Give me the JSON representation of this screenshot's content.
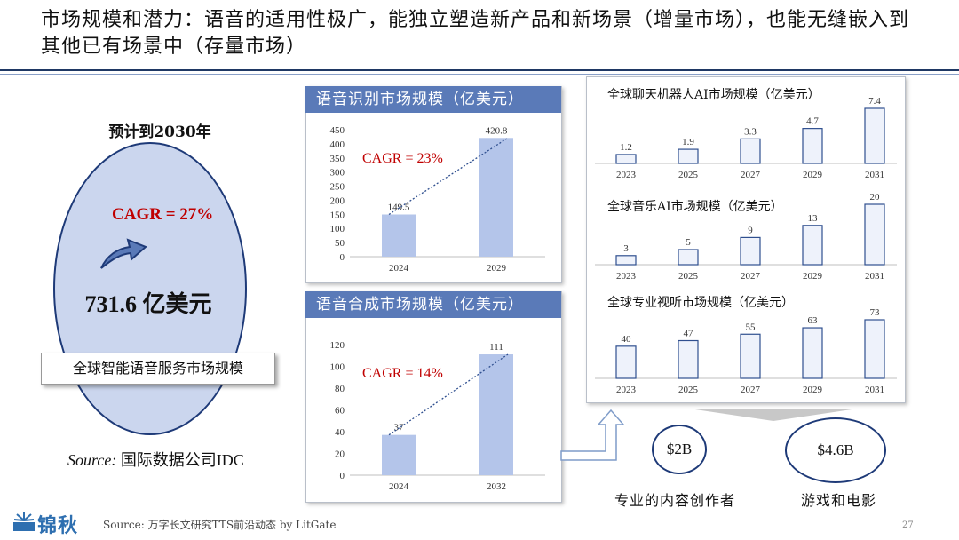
{
  "title": "市场规模和潜力：语音的适用性极广，能独立塑造新产品和新场景（增量市场），也能无缝嵌入到其他已有场景中（存量市场）",
  "left": {
    "forecast_label": "预计到2030年",
    "cagr": "CAGR = 27%",
    "amount": "731.6 亿美元",
    "box_label": "全球智能语音服务市场规模",
    "source_prefix": "Source:",
    "source_text": " 国际数据公司IDC",
    "arrow_icon": "curved-up-arrow-icon"
  },
  "footer": {
    "logo": "锦秋",
    "source": "Source: 万字长文研究TTS前沿动态 by  LitGate",
    "page": "27"
  },
  "bottom_right": {
    "circle1": "$2B",
    "circle2": "$4.6B",
    "caption1": "专业的内容创作者",
    "caption2": "游戏和电影"
  },
  "chart_data": [
    {
      "type": "bar",
      "title": "语音识别市场规模（亿美元）",
      "annotation": "CAGR = 23%",
      "categories": [
        "2024",
        "2029"
      ],
      "values": [
        149.5,
        420.8
      ],
      "value_labels": [
        "149.5",
        "420.8"
      ],
      "ylim": [
        0,
        450
      ],
      "yticks": [
        0,
        50,
        100,
        150,
        200,
        250,
        300,
        350,
        400,
        450
      ],
      "trendline": true,
      "colors": {
        "bar": "#b4c5ea",
        "trend": "#2f4f8f",
        "accent": "#c00000"
      }
    },
    {
      "type": "bar",
      "title": "语音合成市场规模（亿美元）",
      "annotation": "CAGR = 14%",
      "categories": [
        "2024",
        "2032"
      ],
      "values": [
        37,
        111
      ],
      "value_labels": [
        "37",
        "111"
      ],
      "ylim": [
        0,
        120
      ],
      "yticks": [
        0,
        20,
        40,
        60,
        80,
        100,
        120
      ],
      "trendline": true,
      "colors": {
        "bar": "#b4c5ea",
        "trend": "#2f4f8f",
        "accent": "#c00000"
      }
    },
    {
      "type": "bar",
      "title": "全球聊天机器人AI市场规模（亿美元）",
      "categories": [
        "2023",
        "2025",
        "2027",
        "2029",
        "2031"
      ],
      "values": [
        1.2,
        1.9,
        3.3,
        4.7,
        7.4
      ],
      "value_labels": [
        "1.2",
        "1.9",
        "3.3",
        "4.7",
        "7.4"
      ],
      "ylim": [
        0,
        7.4
      ],
      "colors": {
        "bar": "#eef2fb",
        "stroke": "#2f4f8f"
      }
    },
    {
      "type": "bar",
      "title": "全球音乐AI市场规模（亿美元）",
      "categories": [
        "2023",
        "2025",
        "2027",
        "2029",
        "2031"
      ],
      "values": [
        3,
        5,
        9,
        13,
        20
      ],
      "value_labels": [
        "3",
        "5",
        "9",
        "13",
        "20"
      ],
      "ylim": [
        0,
        20
      ],
      "colors": {
        "bar": "#eef2fb",
        "stroke": "#2f4f8f"
      }
    },
    {
      "type": "bar",
      "title": "全球专业视听市场规模（亿美元）",
      "categories": [
        "2023",
        "2025",
        "2027",
        "2029",
        "2031"
      ],
      "values": [
        40,
        47,
        55,
        63,
        73
      ],
      "value_labels": [
        "40",
        "47",
        "55",
        "63",
        "73"
      ],
      "ylim": [
        0,
        73
      ],
      "colors": {
        "bar": "#eef2fb",
        "stroke": "#2f4f8f"
      }
    }
  ]
}
